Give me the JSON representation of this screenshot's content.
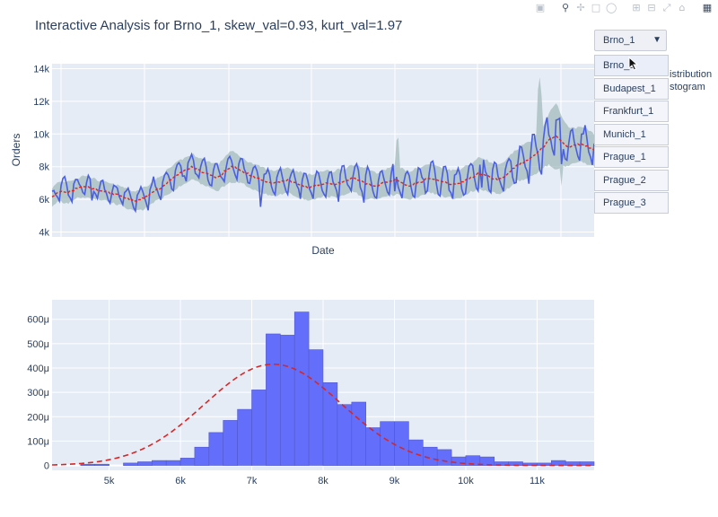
{
  "title": "Interactive Analysis for Brno_1, skew_val=0.93, kurt_val=1.97",
  "modebar": {
    "icons": [
      "camera-icon",
      "zoom-icon",
      "pan-icon",
      "box-select-icon",
      "lasso-icon",
      "zoom-in-icon",
      "zoom-out-icon",
      "autoscale-icon",
      "home-icon",
      "plotly-logo-icon"
    ]
  },
  "dropdown": {
    "selected": "Brno_1",
    "options": [
      "Brno_1",
      "Budapest_1",
      "Frankfurt_1",
      "Munich_1",
      "Prague_1",
      "Prague_2",
      "Prague_3"
    ]
  },
  "legend_partial": [
    "istribution",
    "stogram"
  ],
  "colors": {
    "plot_bg": "#e5ecf6",
    "series_blue": "#4a5fe0",
    "band": "#9fb8b8",
    "mean_red": "#d62728",
    "hist_fill": "#636efa"
  },
  "chart_data": [
    {
      "type": "line",
      "xlabel": "Date",
      "ylabel": "Orders",
      "ylim": [
        3700,
        14300
      ],
      "yticks": [
        4000,
        6000,
        8000,
        10000,
        12000,
        14000
      ],
      "ytick_labels": [
        "4k",
        "6k",
        "8k",
        "10k",
        "12k",
        "14k"
      ],
      "grid": true,
      "trend": [
        6100,
        6500,
        6400,
        6500,
        6700,
        6800,
        6700,
        6600,
        6500,
        6400,
        6300,
        6200,
        6000,
        5900,
        6000,
        6200,
        6500,
        6700,
        7000,
        7300,
        7600,
        7800,
        8000,
        7800,
        7600,
        7500,
        7300,
        7700,
        8000,
        7900,
        7700,
        7500,
        7300,
        7200,
        7000,
        7000,
        7100,
        7200,
        7000,
        6900,
        6700,
        6800,
        6900,
        7000,
        6900,
        7000,
        7100,
        7300,
        7200,
        7000,
        6900,
        6800,
        7000,
        7100,
        7200,
        7000,
        6800,
        7000,
        7100,
        7300,
        7200,
        7100,
        7000,
        6900,
        7000,
        7200,
        7400,
        7600,
        7500,
        7300,
        7200,
        7400,
        7800,
        8100,
        8300,
        8500,
        8800,
        9200,
        9700,
        9900,
        9500,
        9200,
        9300,
        9400,
        9200,
        9000
      ],
      "amplitude": [
        600,
        700,
        900,
        800,
        600,
        700,
        800,
        700,
        600,
        600,
        700,
        700,
        700,
        700,
        800,
        800,
        800,
        700,
        800,
        900,
        800,
        800,
        700,
        700,
        800,
        900,
        800,
        900,
        1000,
        900,
        900,
        800,
        800,
        800,
        900,
        900,
        900,
        800,
        800,
        800,
        900,
        900,
        1000,
        900,
        900,
        1000,
        900,
        900,
        1000,
        1100,
        1000,
        900,
        1000,
        1000,
        1000,
        1000,
        1100,
        1000,
        1000,
        1100,
        1000,
        1000,
        1000,
        1100,
        1000,
        1000,
        1100,
        1100,
        1000,
        1000,
        1100,
        1100,
        1100,
        1200,
        1300,
        1300,
        1400,
        1500,
        1700,
        1800,
        1400,
        1200,
        1100,
        1100,
        1100,
        1100
      ],
      "band_width": [
        500,
        500,
        600,
        600,
        500,
        600,
        600,
        500,
        500,
        500,
        500,
        500,
        500,
        500,
        600,
        600,
        600,
        600,
        700,
        700,
        700,
        700,
        700,
        700,
        700,
        700,
        700,
        800,
        900,
        800,
        700,
        700,
        700,
        700,
        700,
        700,
        700,
        700,
        700,
        700,
        700,
        700,
        700,
        700,
        700,
        800,
        700,
        700,
        800,
        900,
        800,
        700,
        700,
        800,
        800,
        800,
        800,
        800,
        800,
        800,
        800,
        800,
        800,
        800,
        800,
        800,
        800,
        900,
        900,
        800,
        800,
        800,
        900,
        900,
        1000,
        1000,
        1100,
        1200,
        1500,
        2000,
        1400,
        1100,
        1000,
        1000,
        1000,
        900
      ]
    },
    {
      "type": "bar",
      "xlim": [
        4200,
        11800
      ],
      "ylim": [
        -2e-05,
        0.00068
      ],
      "xticks": [
        5000,
        6000,
        7000,
        8000,
        9000,
        10000,
        11000
      ],
      "xtick_labels": [
        "5k",
        "6k",
        "7k",
        "8k",
        "9k",
        "10k",
        "11k"
      ],
      "yticks": [
        0,
        0.0001,
        0.0002,
        0.0003,
        0.0004,
        0.0005,
        0.0006
      ],
      "ytick_labels": [
        "0",
        "100μ",
        "200μ",
        "300μ",
        "400μ",
        "500μ",
        "600μ"
      ],
      "bin_start": 4200,
      "bin_width": 200,
      "densities": [
        0,
        0,
        5e-06,
        5e-06,
        0,
        1e-05,
        1.5e-05,
        2e-05,
        2e-05,
        3e-05,
        7.5e-05,
        0.000135,
        0.000185,
        0.00023,
        0.00031,
        0.00054,
        0.000535,
        0.00063,
        0.000475,
        0.00034,
        0.00025,
        0.00026,
        0.000155,
        0.00018,
        0.00018,
        0.000105,
        7.5e-05,
        6.5e-05,
        3.5e-05,
        4e-05,
        3.5e-05,
        1.5e-05,
        1.5e-05,
        1e-05,
        1e-05,
        2e-05,
        1.5e-05,
        1.5e-05,
        1e-05
      ],
      "normal_fit": {
        "mean": 7300,
        "std": 960
      }
    }
  ]
}
